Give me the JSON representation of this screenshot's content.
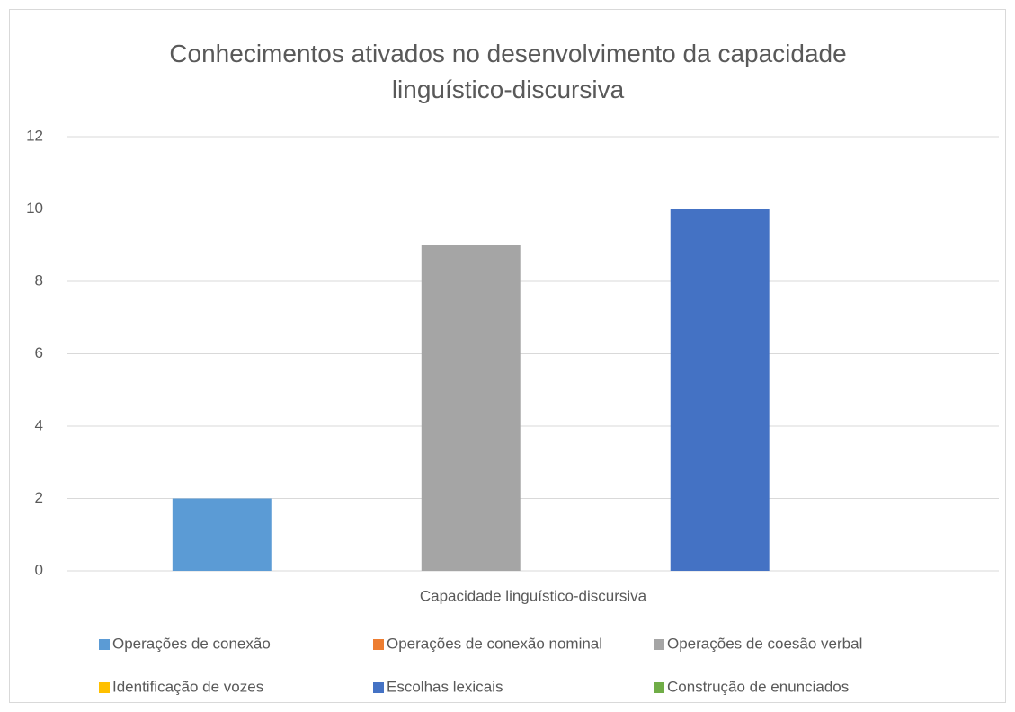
{
  "chart_data": {
    "type": "bar",
    "title": "Conhecimentos ativados no desenvolvimento da capacidade linguístico-discursiva",
    "categories": [
      "Capacidade linguístico-discursiva"
    ],
    "series": [
      {
        "name": "Operações de conexão",
        "color": "#5b9bd5",
        "values": [
          2
        ]
      },
      {
        "name": "Operações de conexão nominal",
        "color": "#ed7d31",
        "values": [
          0
        ]
      },
      {
        "name": "Operações de coesão verbal",
        "color": "#a5a5a5",
        "values": [
          9
        ]
      },
      {
        "name": "Identificação de vozes",
        "color": "#ffc000",
        "values": [
          0
        ]
      },
      {
        "name": "Escolhas lexicais",
        "color": "#4472c4",
        "values": [
          10
        ]
      },
      {
        "name": "Construção de enunciados",
        "color": "#70ad47",
        "values": [
          0
        ]
      }
    ],
    "ylim": [
      0,
      12
    ],
    "yticks": [
      0,
      2,
      4,
      6,
      8,
      10,
      12
    ],
    "grid": true,
    "legend": "bottom"
  }
}
